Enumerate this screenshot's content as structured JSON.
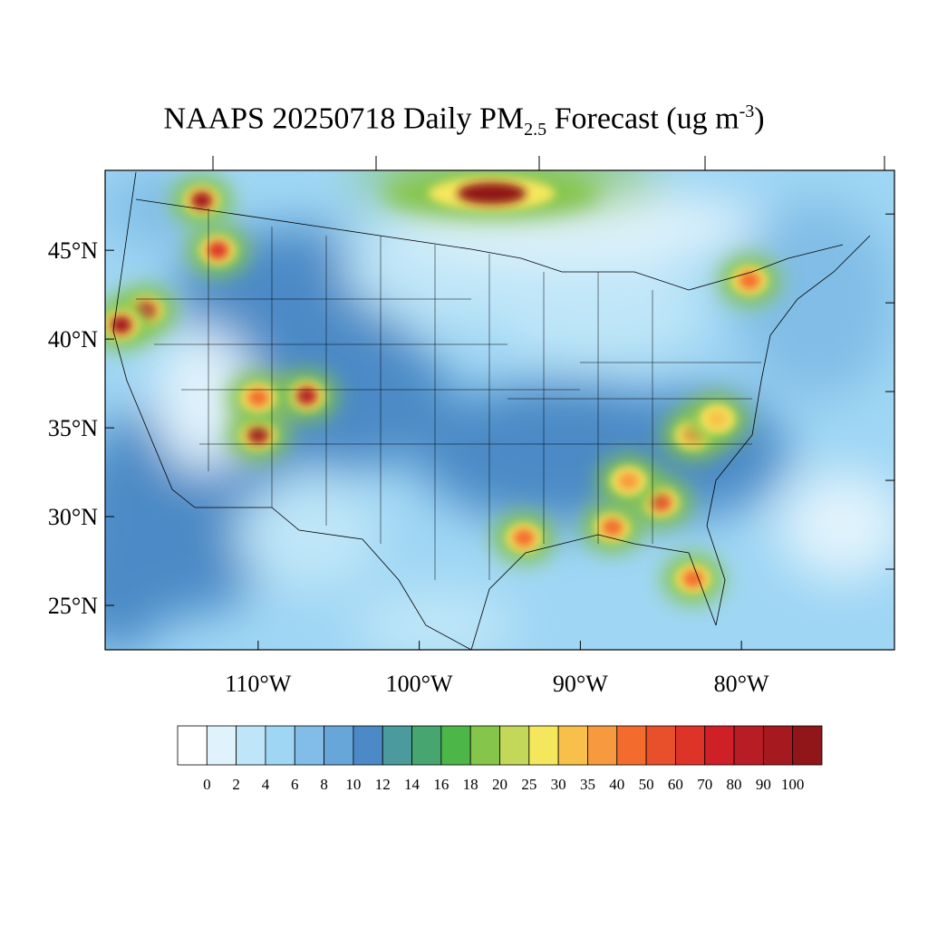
{
  "title": {
    "prefix": "NAAPS 20250718 Daily PM",
    "subscript": "2.5",
    "middle": " Forecast (ug m",
    "superscript": "-3",
    "suffix": ")"
  },
  "map": {
    "lat_labels": [
      "45°N",
      "40°N",
      "35°N",
      "30°N",
      "25°N"
    ],
    "lon_labels": [
      "110°W",
      "100°W",
      "90°W",
      "80°W"
    ],
    "lat_values": [
      45,
      40,
      35,
      30,
      25
    ],
    "lon_values": [
      -110,
      -100,
      -90,
      -80
    ],
    "lat_range": [
      22.5,
      49.5
    ],
    "lon_range": [
      -119.5,
      -70.5
    ],
    "plumes": [
      {
        "lon": -113.5,
        "lat": 47.8,
        "value": 90
      },
      {
        "lon": -112.5,
        "lat": 45.0,
        "value": 60
      },
      {
        "lon": -117.0,
        "lat": 41.6,
        "value": 70
      },
      {
        "lon": -118.5,
        "lat": 40.8,
        "value": 90
      },
      {
        "lon": -107.0,
        "lat": 36.8,
        "value": 80
      },
      {
        "lon": -110.0,
        "lat": 34.6,
        "value": 90
      },
      {
        "lon": -110.0,
        "lat": 36.7,
        "value": 40
      },
      {
        "lon": -95.5,
        "lat": 48.2,
        "value": 100
      },
      {
        "lon": -93.5,
        "lat": 28.8,
        "value": 40
      },
      {
        "lon": -88.0,
        "lat": 29.4,
        "value": 40
      },
      {
        "lon": -85.0,
        "lat": 30.8,
        "value": 50
      },
      {
        "lon": -83.0,
        "lat": 34.6,
        "value": 35
      },
      {
        "lon": -81.5,
        "lat": 35.5,
        "value": 30
      },
      {
        "lon": -83.0,
        "lat": 26.5,
        "value": 40
      },
      {
        "lon": -79.5,
        "lat": 43.3,
        "value": 40
      },
      {
        "lon": -87.0,
        "lat": 32.0,
        "value": 35
      }
    ]
  },
  "colorbar": {
    "labels": [
      "0",
      "2",
      "4",
      "6",
      "8",
      "10",
      "12",
      "14",
      "16",
      "18",
      "20",
      "25",
      "30",
      "35",
      "40",
      "50",
      "60",
      "70",
      "80",
      "90",
      "100"
    ],
    "colors": [
      "#ffffff",
      "#e0f3fc",
      "#bfe6f8",
      "#9fd6f4",
      "#81bde6",
      "#66a6d9",
      "#4b8ac6",
      "#4a9a9e",
      "#47a56f",
      "#4db648",
      "#85c54b",
      "#c3d758",
      "#f5e75d",
      "#f8c04a",
      "#f7993e",
      "#f36c2e",
      "#e8502b",
      "#de3428",
      "#cf1f27",
      "#b81c24",
      "#a5191f",
      "#901619"
    ]
  }
}
